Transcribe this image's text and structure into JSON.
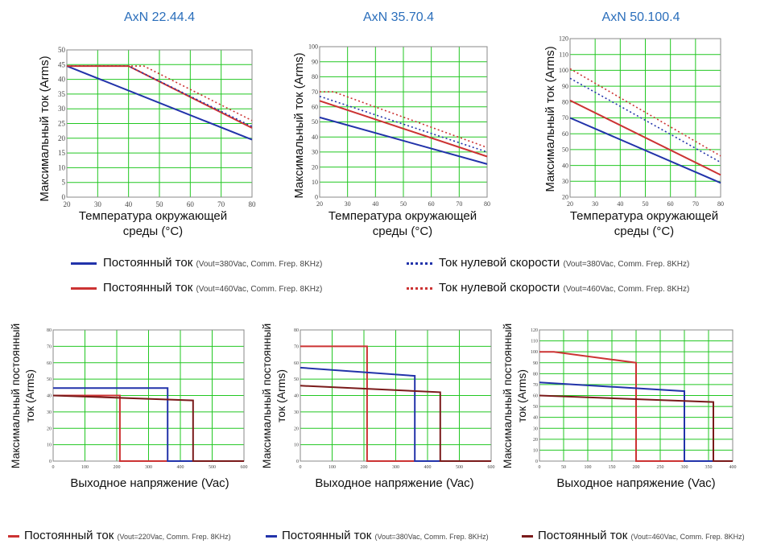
{
  "colors": {
    "grid": "#22c722",
    "blue": "#2233aa",
    "red": "#cc3333",
    "dark_red": "#7a1a1a",
    "title": "#2a6ebb"
  },
  "top_legend": [
    {
      "label": "Постоянный ток",
      "note": "(Vout=380Vac, Comm. Frep. 8KHz)",
      "color": "#2233aa",
      "style": "solid"
    },
    {
      "label": "Постоянный ток",
      "note": "(Vout=460Vac, Comm. Frep. 8KHz)",
      "color": "#cc3333",
      "style": "solid"
    },
    {
      "label": "Ток нулевой скорости",
      "note": "(Vout=380Vac, Comm. Frep. 8KHz)",
      "color": "#2233aa",
      "style": "dotted"
    },
    {
      "label": "Ток нулевой скорости",
      "note": "(Vout=460Vac, Comm. Frep. 8KHz)",
      "color": "#cc3333",
      "style": "dotted"
    }
  ],
  "bottom_legend": [
    {
      "label": "Постоянный ток",
      "note": "(Vout=220Vac, Comm. Frep. 8KHz)",
      "color": "#cc3333"
    },
    {
      "label": "Постоянный ток",
      "note": "(Vout=380Vac, Comm. Frep. 8KHz)",
      "color": "#2233aa"
    },
    {
      "label": "Постоянный ток",
      "note": "(Vout=460Vac, Comm. Frep. 8KHz)",
      "color": "#7a1a1a"
    }
  ],
  "chart_data": [
    {
      "type": "line",
      "title": "AxN 22.44.4",
      "xlabel": [
        "Температура окружающей",
        "среды (°C)"
      ],
      "ylabel": "Максимальный ток (Arms)",
      "xlim": [
        20,
        80
      ],
      "ylim": [
        0,
        50
      ],
      "xticks": [
        20,
        30,
        40,
        50,
        60,
        70,
        80
      ],
      "yticks": [
        0,
        5,
        10,
        15,
        20,
        25,
        30,
        35,
        40,
        45,
        50
      ],
      "grid": true,
      "series": [
        {
          "color": "#2233aa",
          "style": "solid",
          "points": [
            [
              20,
              44.5
            ],
            [
              80,
              19.5
            ]
          ]
        },
        {
          "color": "#cc3333",
          "style": "solid",
          "points": [
            [
              20,
              44.5
            ],
            [
              40,
              44.5
            ],
            [
              80,
              23.5
            ]
          ]
        },
        {
          "color": "#2233aa",
          "style": "dotted",
          "points": [
            [
              20,
              44.5
            ],
            [
              40,
              44.5
            ],
            [
              80,
              24
            ]
          ]
        },
        {
          "color": "#cc3333",
          "style": "dotted",
          "points": [
            [
              20,
              44.5
            ],
            [
              45,
              44.5
            ],
            [
              80,
              26
            ]
          ]
        }
      ]
    },
    {
      "type": "line",
      "title": "AxN 35.70.4",
      "xlabel": [
        "Температура окружающей",
        "среды (°C)"
      ],
      "ylabel": "Максимальный ток (Arms)",
      "xlim": [
        20,
        80
      ],
      "ylim": [
        0,
        100
      ],
      "xticks": [
        20,
        30,
        40,
        50,
        60,
        70,
        80
      ],
      "yticks": [
        0,
        10,
        20,
        30,
        40,
        50,
        60,
        70,
        80,
        90,
        100
      ],
      "grid": true,
      "series": [
        {
          "color": "#2233aa",
          "style": "solid",
          "points": [
            [
              20,
              53
            ],
            [
              80,
              22
            ]
          ]
        },
        {
          "color": "#cc3333",
          "style": "solid",
          "points": [
            [
              20,
              64
            ],
            [
              80,
              27
            ]
          ]
        },
        {
          "color": "#2233aa",
          "style": "dotted",
          "points": [
            [
              20,
              67
            ],
            [
              80,
              30
            ]
          ]
        },
        {
          "color": "#cc3333",
          "style": "dotted",
          "points": [
            [
              20,
              70
            ],
            [
              25,
              70
            ],
            [
              80,
              33
            ]
          ]
        }
      ]
    },
    {
      "type": "line",
      "title": "AxN 50.100.4",
      "xlabel": [
        "Температура окружающей",
        "среды (°C)"
      ],
      "ylabel": "Максимальный ток (Arms)",
      "xlim": [
        20,
        80
      ],
      "ylim": [
        20,
        120
      ],
      "xticks": [
        20,
        30,
        40,
        50,
        60,
        70,
        80
      ],
      "yticks": [
        20,
        30,
        40,
        50,
        60,
        70,
        80,
        90,
        100,
        110,
        120
      ],
      "grid": true,
      "series": [
        {
          "color": "#2233aa",
          "style": "solid",
          "points": [
            [
              20,
              70
            ],
            [
              80,
              29
            ]
          ]
        },
        {
          "color": "#cc3333",
          "style": "solid",
          "points": [
            [
              20,
              81
            ],
            [
              80,
              34
            ]
          ]
        },
        {
          "color": "#2233aa",
          "style": "dotted",
          "points": [
            [
              20,
              95
            ],
            [
              80,
              42
            ]
          ]
        },
        {
          "color": "#cc3333",
          "style": "dotted",
          "points": [
            [
              20,
              101
            ],
            [
              80,
              46
            ]
          ]
        }
      ]
    },
    {
      "type": "line",
      "title": "",
      "xlabel": [
        "Выходное напряжение (Vac)"
      ],
      "ylabel": "Максимальный постоянный ток (Arms)",
      "xlim": [
        0,
        600
      ],
      "ylim": [
        0,
        80
      ],
      "xticks": [
        0,
        100,
        200,
        300,
        400,
        500,
        600
      ],
      "yticks": [
        0,
        10,
        20,
        30,
        40,
        50,
        60,
        70,
        80
      ],
      "grid": true,
      "series": [
        {
          "color": "#cc3333",
          "style": "solid",
          "points": [
            [
              0,
              40
            ],
            [
              210,
              40
            ],
            [
              210,
              0
            ],
            [
              600,
              0
            ]
          ]
        },
        {
          "color": "#2233aa",
          "style": "solid",
          "points": [
            [
              0,
              44.5
            ],
            [
              360,
              44.5
            ],
            [
              360,
              0
            ],
            [
              600,
              0
            ]
          ]
        },
        {
          "color": "#7a1a1a",
          "style": "solid",
          "points": [
            [
              0,
              40
            ],
            [
              440,
              37
            ],
            [
              440,
              0
            ],
            [
              600,
              0
            ]
          ]
        }
      ]
    },
    {
      "type": "line",
      "title": "",
      "xlabel": [
        "Выходное напряжение (Vac)"
      ],
      "ylabel": "Максимальный постоянный ток (Arms)",
      "xlim": [
        0,
        600
      ],
      "ylim": [
        0,
        80
      ],
      "xticks": [
        0,
        100,
        200,
        300,
        400,
        500,
        600
      ],
      "yticks": [
        0,
        10,
        20,
        30,
        40,
        50,
        60,
        70,
        80
      ],
      "grid": true,
      "series": [
        {
          "color": "#cc3333",
          "style": "solid",
          "points": [
            [
              0,
              70
            ],
            [
              210,
              70
            ],
            [
              210,
              0
            ],
            [
              600,
              0
            ]
          ]
        },
        {
          "color": "#2233aa",
          "style": "solid",
          "points": [
            [
              0,
              57
            ],
            [
              360,
              52
            ],
            [
              360,
              0
            ],
            [
              600,
              0
            ]
          ]
        },
        {
          "color": "#7a1a1a",
          "style": "solid",
          "points": [
            [
              0,
              46
            ],
            [
              440,
              42
            ],
            [
              440,
              0
            ],
            [
              600,
              0
            ]
          ]
        }
      ]
    },
    {
      "type": "line",
      "title": "",
      "xlabel": [
        "Выходное напряжение (Vac)"
      ],
      "ylabel": "Максимальный постоянный ток (Arms)",
      "xlim": [
        0,
        400
      ],
      "ylim": [
        0,
        120
      ],
      "xticks": [
        0,
        50,
        100,
        150,
        200,
        250,
        300,
        350,
        400
      ],
      "yticks": [
        0,
        10,
        20,
        30,
        40,
        50,
        60,
        70,
        80,
        90,
        100,
        110,
        120
      ],
      "grid": true,
      "series": [
        {
          "color": "#cc3333",
          "style": "solid",
          "points": [
            [
              0,
              100
            ],
            [
              30,
              100
            ],
            [
              200,
              90
            ],
            [
              200,
              0
            ],
            [
              400,
              0
            ]
          ]
        },
        {
          "color": "#2233aa",
          "style": "solid",
          "points": [
            [
              0,
              72
            ],
            [
              300,
              64
            ],
            [
              300,
              0
            ],
            [
              400,
              0
            ]
          ]
        },
        {
          "color": "#7a1a1a",
          "style": "solid",
          "points": [
            [
              0,
              60
            ],
            [
              360,
              54
            ],
            [
              360,
              0
            ],
            [
              400,
              0
            ]
          ]
        }
      ]
    }
  ]
}
